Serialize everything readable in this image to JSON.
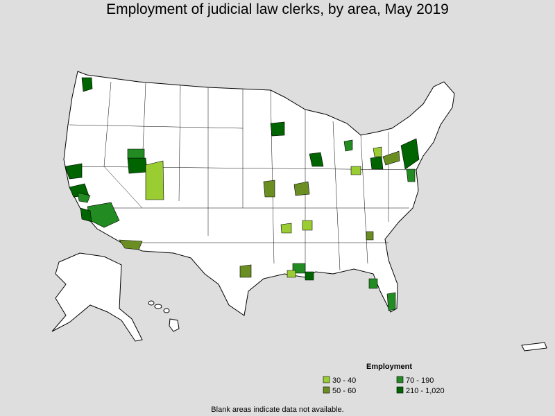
{
  "header": {
    "title": "Employment of judicial law clerks, by area, May 2019"
  },
  "legend": {
    "title": "Employment",
    "items": [
      {
        "label": "30 - 40",
        "color": "#9acd32"
      },
      {
        "label": "50 - 60",
        "color": "#6b8e23"
      },
      {
        "label": "70 - 190",
        "color": "#228b22"
      },
      {
        "label": "210 - 1,020",
        "color": "#006400"
      }
    ]
  },
  "footnote": "Blank areas indicate data not available."
}
